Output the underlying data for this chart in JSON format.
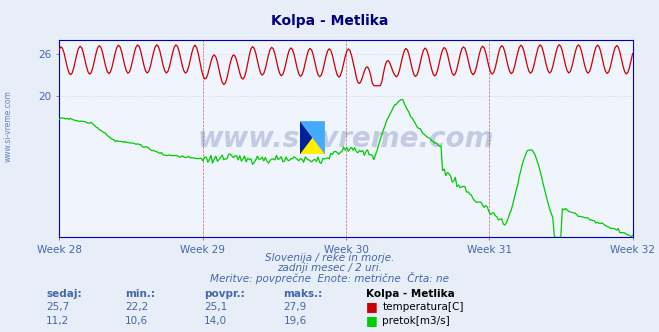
{
  "title": "Kolpa - Metlika",
  "title_color": "#000080",
  "bg_color": "#e8eef8",
  "plot_bg_color": "#f0f4fc",
  "grid_color": "#c8c8d8",
  "vgrid_color": "#cc0000",
  "hgrid_color": "#c8c8d8",
  "axis_color": "#0000bb",
  "xlabel_weeks": [
    "Week 28",
    "Week 29",
    "Week 30",
    "Week 31",
    "Week 32"
  ],
  "ylim": [
    0,
    28
  ],
  "yticks": [
    20,
    26
  ],
  "temp_color": "#cc0000",
  "flow_color": "#00cc00",
  "watermark_text": "www.si-vreme.com",
  "watermark_color": "#1a3a8a",
  "subtitle1": "Slovenija / reke in morje.",
  "subtitle2": "zadnji mesec / 2 uri.",
  "subtitle3": "Meritve: povprečne  Enote: metrične  Črta: ne",
  "subtitle_color": "#4466aa",
  "legend_title": "Kolpa - Metlika",
  "legend_temp": "temperatura[C]",
  "legend_flow": "pretok[m3/s]",
  "stats_headers": [
    "sedaj:",
    "min.:",
    "povpr.:",
    "maks.:"
  ],
  "stats_temp": [
    "25,7",
    "22,2",
    "25,1",
    "27,9"
  ],
  "stats_flow": [
    "11,2",
    "10,6",
    "14,0",
    "19,6"
  ],
  "n_points": 360,
  "left_watermark": "www.si-vreme.com"
}
